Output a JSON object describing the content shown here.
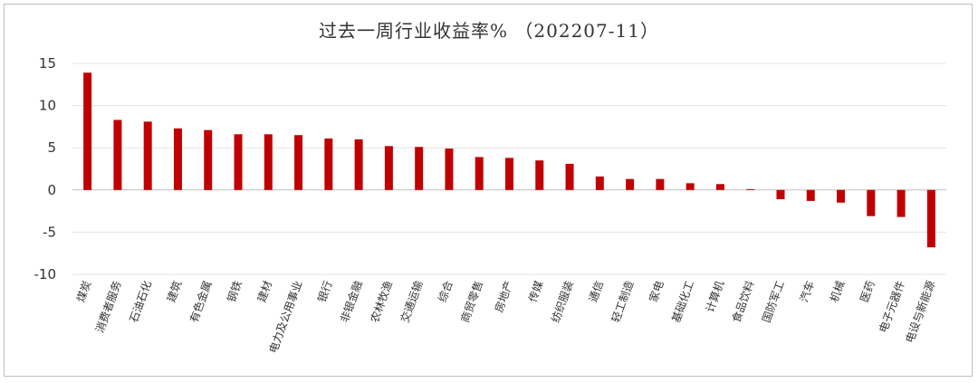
{
  "chart_data": {
    "type": "bar",
    "title": "过去一周行业收益率% （202207-11）",
    "xlabel": "",
    "ylabel": "",
    "ylim": [
      -10,
      15
    ],
    "yticks": [
      15,
      10,
      5,
      0,
      -5,
      -10
    ],
    "grid": true,
    "bar_color": "#c00000",
    "categories": [
      "煤炭",
      "消费者服务",
      "石油石化",
      "建筑",
      "有色金属",
      "钢铁",
      "建材",
      "电力及公用事业",
      "银行",
      "非银金融",
      "农林牧渔",
      "交通运输",
      "综合",
      "商贸零售",
      "房地产",
      "传媒",
      "纺织服装",
      "通信",
      "轻工制造",
      "家电",
      "基础化工",
      "计算机",
      "食品饮料",
      "国防军工",
      "汽车",
      "机械",
      "医药",
      "电子元器件",
      "电设与新能源"
    ],
    "values": [
      13.9,
      8.3,
      8.1,
      7.3,
      7.1,
      6.6,
      6.6,
      6.5,
      6.1,
      6.0,
      5.2,
      5.1,
      4.9,
      3.9,
      3.8,
      3.5,
      3.1,
      1.6,
      1.3,
      1.3,
      0.8,
      0.7,
      0.1,
      -1.1,
      -1.3,
      -1.5,
      -3.1,
      -3.2,
      -6.8
    ]
  }
}
